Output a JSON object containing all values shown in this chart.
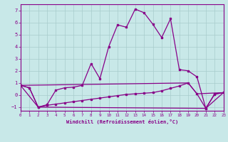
{
  "xlabel": "Windchill (Refroidissement éolien,°C)",
  "bg_color": "#c8e8e8",
  "line_color": "#880088",
  "grid_color": "#a8cccc",
  "xlim": [
    0,
    23
  ],
  "ylim": [
    -1.3,
    7.5
  ],
  "xticks": [
    0,
    1,
    2,
    3,
    4,
    5,
    6,
    7,
    8,
    9,
    10,
    11,
    12,
    13,
    14,
    15,
    16,
    17,
    18,
    19,
    20,
    21,
    22,
    23
  ],
  "yticks": [
    -1,
    0,
    1,
    2,
    3,
    4,
    5,
    6,
    7
  ],
  "line1_x": [
    0,
    1,
    2,
    3,
    4,
    5,
    6,
    7,
    8,
    9,
    10,
    11,
    12,
    13,
    14,
    15,
    16,
    17,
    18,
    19,
    20,
    21,
    22,
    23
  ],
  "line1_y": [
    0.8,
    0.6,
    -1.0,
    -0.8,
    0.4,
    0.6,
    0.65,
    0.8,
    2.6,
    1.35,
    4.0,
    5.8,
    5.6,
    7.1,
    6.8,
    5.85,
    4.75,
    6.3,
    2.1,
    2.0,
    1.5,
    -1.1,
    0.1,
    0.2
  ],
  "line2_x": [
    0,
    1,
    2,
    3,
    4,
    5,
    6,
    7,
    8,
    9,
    10,
    11,
    12,
    13,
    14,
    15,
    16,
    17,
    18,
    19,
    20,
    21,
    22,
    23
  ],
  "line2_y": [
    0.8,
    0.6,
    -1.0,
    -0.85,
    -0.75,
    -0.65,
    -0.55,
    -0.45,
    -0.35,
    -0.25,
    -0.15,
    -0.05,
    0.05,
    0.1,
    0.15,
    0.2,
    0.35,
    0.55,
    0.75,
    1.0,
    0.1,
    -1.1,
    0.05,
    0.2
  ],
  "line3_x": [
    0,
    2,
    21,
    23
  ],
  "line3_y": [
    0.8,
    -1.0,
    -1.1,
    0.2
  ],
  "line4_x": [
    0,
    19,
    20,
    23
  ],
  "line4_y": [
    0.8,
    1.0,
    0.1,
    0.2
  ],
  "marker_size": 2,
  "line_width": 0.9
}
